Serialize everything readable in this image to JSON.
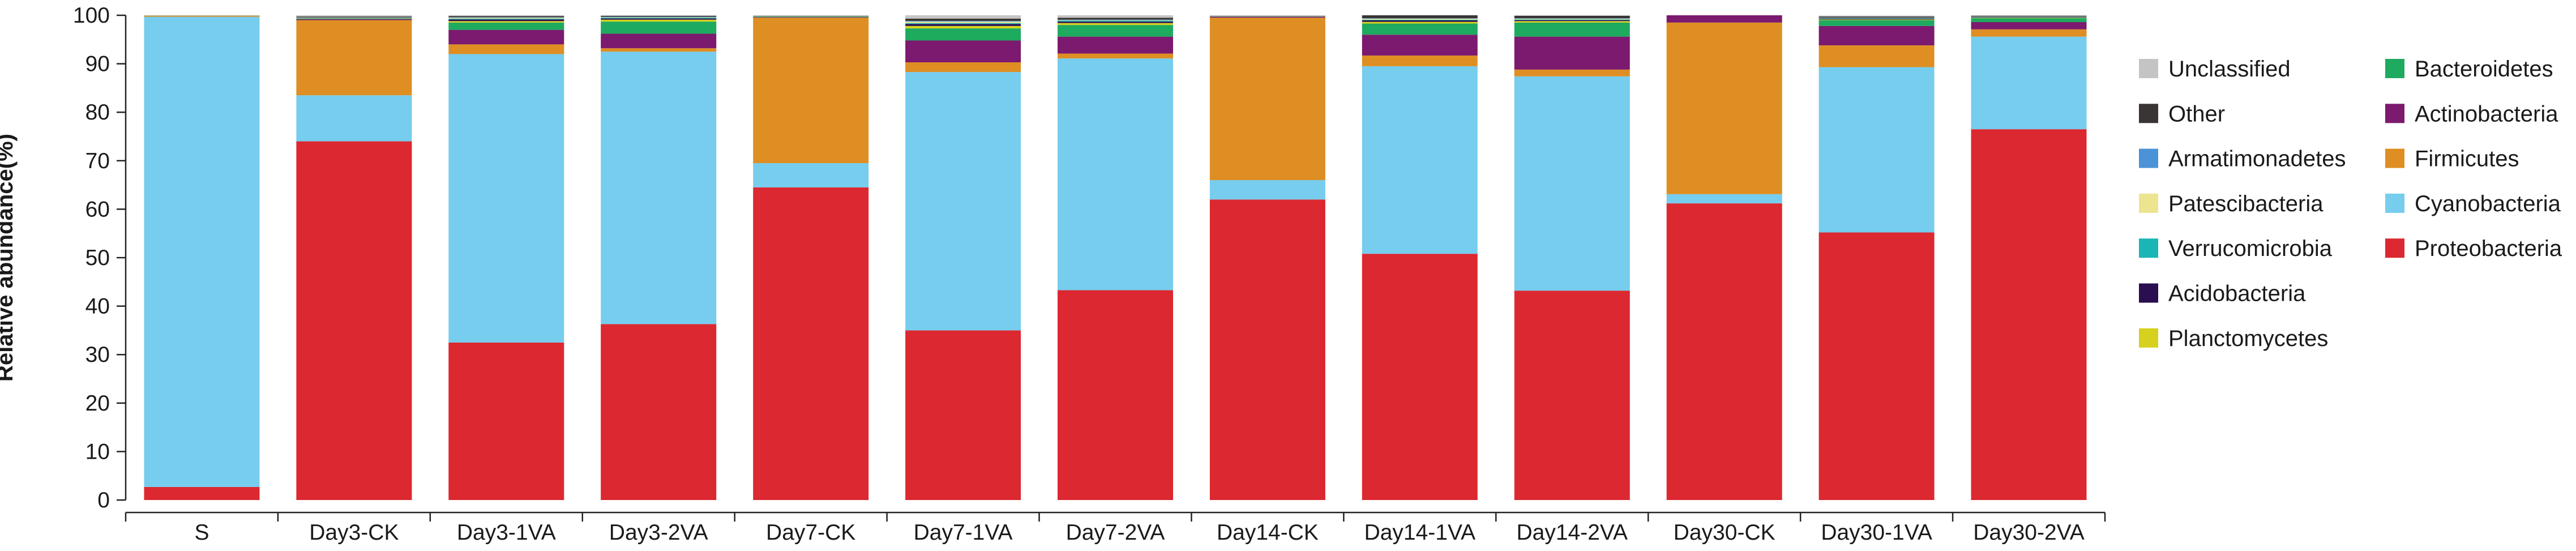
{
  "chart_data": {
    "type": "bar",
    "stacked": true,
    "title": "",
    "xlabel": "",
    "ylabel": "Relative abundance(%)",
    "ylim": [
      0,
      100
    ],
    "yticks": [
      0,
      10,
      20,
      30,
      40,
      50,
      60,
      70,
      80,
      90,
      100
    ],
    "categories": [
      "S",
      "Day3-CK",
      "Day3-1VA",
      "Day3-2VA",
      "Day7-CK",
      "Day7-1VA",
      "Day7-2VA",
      "Day14-CK",
      "Day14-1VA",
      "Day14-2VA",
      "Day30-CK",
      "Day30-1VA",
      "Day30-2VA"
    ],
    "series": [
      {
        "name": "Proteobacteria",
        "color": "#dc2830",
        "values": [
          2.7,
          74,
          32.5,
          36.3,
          64.5,
          35,
          43.3,
          62,
          50.8,
          43.2,
          61.2,
          55.2,
          76.5
        ]
      },
      {
        "name": "Cyanobacteria",
        "color": "#76cdee",
        "values": [
          97,
          9.5,
          59.5,
          56.2,
          5,
          53.3,
          47.8,
          4,
          38.7,
          44.2,
          1.9,
          34.1,
          19.1
        ]
      },
      {
        "name": "Firmicutes",
        "color": "#de8e22",
        "values": [
          0.2,
          15.5,
          2,
          0.7,
          30,
          2,
          1,
          33.5,
          2.2,
          1.4,
          35.4,
          4.5,
          1.5
        ]
      },
      {
        "name": "Actinobacteria",
        "color": "#7b1a6e",
        "values": [
          0,
          0.2,
          3,
          3,
          0.1,
          4.5,
          3.5,
          0.2,
          4.3,
          6.8,
          1.8,
          4,
          1.5
        ]
      },
      {
        "name": "Bacteroidetes",
        "color": "#1eaa5f",
        "values": [
          0.02,
          0.1,
          1.5,
          2.5,
          0.1,
          2.5,
          2.4,
          0.05,
          2.3,
          2.9,
          0.2,
          1.2,
          0.8
        ]
      },
      {
        "name": "Planctomycetes",
        "color": "#d6d01e",
        "values": [
          0.01,
          0.05,
          0.3,
          0.4,
          0.05,
          0.5,
          0.4,
          0.02,
          0.35,
          0.3,
          0.05,
          0.15,
          0.1
        ]
      },
      {
        "name": "Acidobacteria",
        "color": "#2a0e4f",
        "values": [
          0.01,
          0.05,
          0.35,
          0.25,
          0.05,
          0.4,
          0.3,
          0.02,
          0.3,
          0.2,
          0.05,
          0.15,
          0.1
        ]
      },
      {
        "name": "Verrucomicrobia",
        "color": "#1bb5b5",
        "values": [
          0.01,
          0.05,
          0.15,
          0.15,
          0.02,
          0.2,
          0.2,
          0.02,
          0.15,
          0.15,
          0.03,
          0.1,
          0.05
        ]
      },
      {
        "name": "Patescibacteria",
        "color": "#ece48e",
        "values": [
          0.01,
          0.05,
          0.2,
          0.1,
          0.02,
          0.3,
          0.1,
          0.02,
          0.2,
          0.15,
          0.03,
          0.05,
          0.05
        ]
      },
      {
        "name": "Armatimonadetes",
        "color": "#4b93d6",
        "values": [
          0.01,
          0.05,
          0.1,
          0.1,
          0.02,
          0.15,
          0.1,
          0.02,
          0.1,
          0.1,
          0.02,
          0.05,
          0.05
        ]
      },
      {
        "name": "Other",
        "color": "#3a3534",
        "values": [
          0.01,
          0.2,
          0.25,
          0.2,
          0.04,
          0.45,
          0.4,
          0.05,
          1.1,
          0.5,
          0.02,
          0.25,
          0.15
        ]
      },
      {
        "name": "Unclassified",
        "color": "#c4c4c4",
        "values": [
          0.03,
          0.25,
          0.15,
          0.1,
          0.1,
          0.7,
          0.5,
          0.1,
          0.0,
          0.1,
          0.29,
          0.2,
          0.1
        ]
      }
    ],
    "legend": {
      "placement": "right",
      "left_column": [
        "Unclassified",
        "Other",
        "Armatimonadetes",
        "Patescibacteria",
        "Verrucomicrobia",
        "Acidobacteria",
        "Planctomycetes"
      ],
      "right_column": [
        "Bacteroidetes",
        "Actinobacteria",
        "Firmicutes",
        "Cyanobacteria",
        "Proteobacteria"
      ]
    },
    "grid": false
  }
}
